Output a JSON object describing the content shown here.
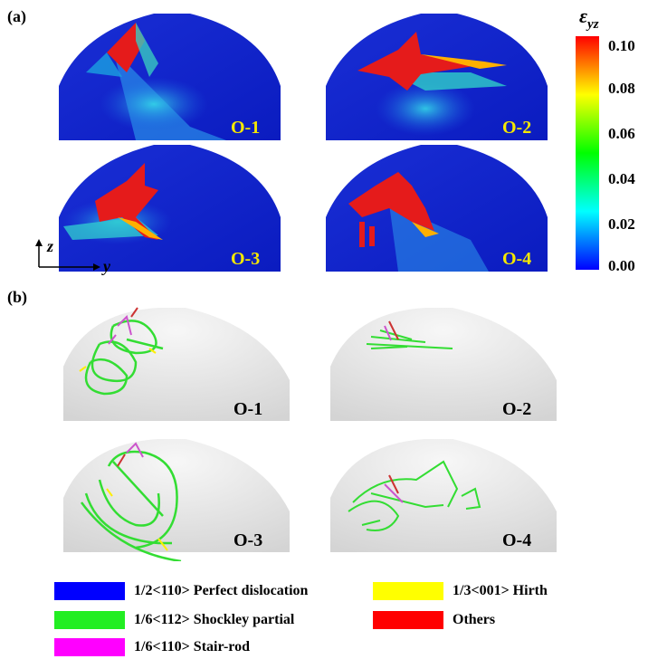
{
  "panel_a": {
    "label": "(a)",
    "axes": {
      "z": "z",
      "y": "y"
    },
    "colorbar": {
      "title": "ε",
      "title_sub": "yz",
      "ticks": [
        "0.10",
        "0.08",
        "0.06",
        "0.04",
        "0.02",
        "0.00"
      ],
      "colors": [
        "#0000ff",
        "#00ffff",
        "#00ff00",
        "#ffff00",
        "#ff0000"
      ]
    },
    "maps": [
      {
        "label": "O-1"
      },
      {
        "label": "O-2"
      },
      {
        "label": "O-3"
      },
      {
        "label": "O-4"
      }
    ]
  },
  "panel_b": {
    "label": "(b)",
    "configs": [
      {
        "label": "O-1"
      },
      {
        "label": "O-2"
      },
      {
        "label": "O-3"
      },
      {
        "label": "O-4"
      }
    ]
  },
  "legend": [
    {
      "label": "1/2<110> Perfect dislocation",
      "color": "#0000ff"
    },
    {
      "label": "1/3<001> Hirth",
      "color": "#ffff00"
    },
    {
      "label": "1/6<112> Shockley partial",
      "color": "#22ee22"
    },
    {
      "label": "Others",
      "color": "#ff0000"
    },
    {
      "label": "1/6<110> Stair-rod",
      "color": "#ff00ff"
    }
  ]
}
